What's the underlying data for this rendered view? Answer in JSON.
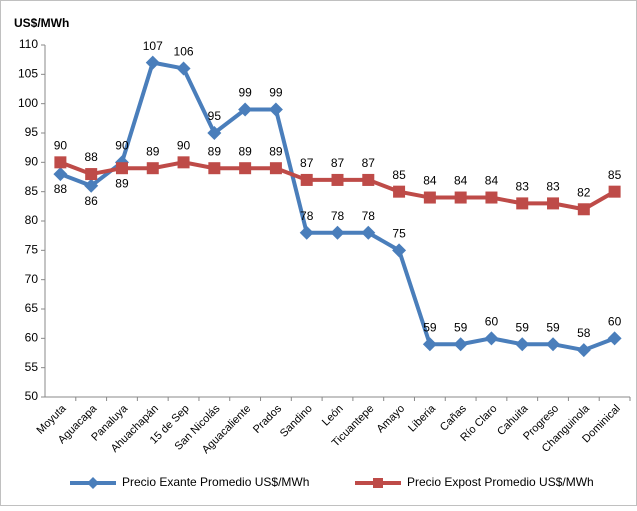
{
  "chart_data": {
    "type": "line",
    "ylabel": "US$/MWh",
    "categories": [
      "Moyuta",
      "Aguacapa",
      "Panaluya",
      "Ahuachapán",
      "15 de Sep",
      "San Nicolás",
      "Aguacaliente",
      "Prados",
      "Sandino",
      "León",
      "Ticuantepe",
      "Amayo",
      "Liberia",
      "Cañas",
      "Río Claro",
      "Cahuita",
      "Progreso",
      "Changuinola",
      "Dominical"
    ],
    "series": [
      {
        "name": "Precio Exante Promedio US$/MWh",
        "color": "#4a7ebb",
        "marker": "diamond",
        "values": [
          88,
          86,
          90,
          107,
          106,
          95,
          99,
          99,
          78,
          78,
          78,
          75,
          59,
          59,
          60,
          59,
          59,
          58,
          60
        ]
      },
      {
        "name": "Precio Expost Promedio US$/MWh",
        "color": "#be4b48",
        "marker": "square",
        "values": [
          90,
          88,
          89,
          89,
          90,
          89,
          89,
          89,
          87,
          87,
          87,
          85,
          84,
          84,
          84,
          83,
          83,
          82,
          85
        ]
      }
    ],
    "ylim": [
      50,
      110
    ],
    "yticks": [
      50,
      55,
      60,
      65,
      70,
      75,
      80,
      85,
      90,
      95,
      100,
      105,
      110
    ],
    "grid": false,
    "legend": "bottom"
  }
}
